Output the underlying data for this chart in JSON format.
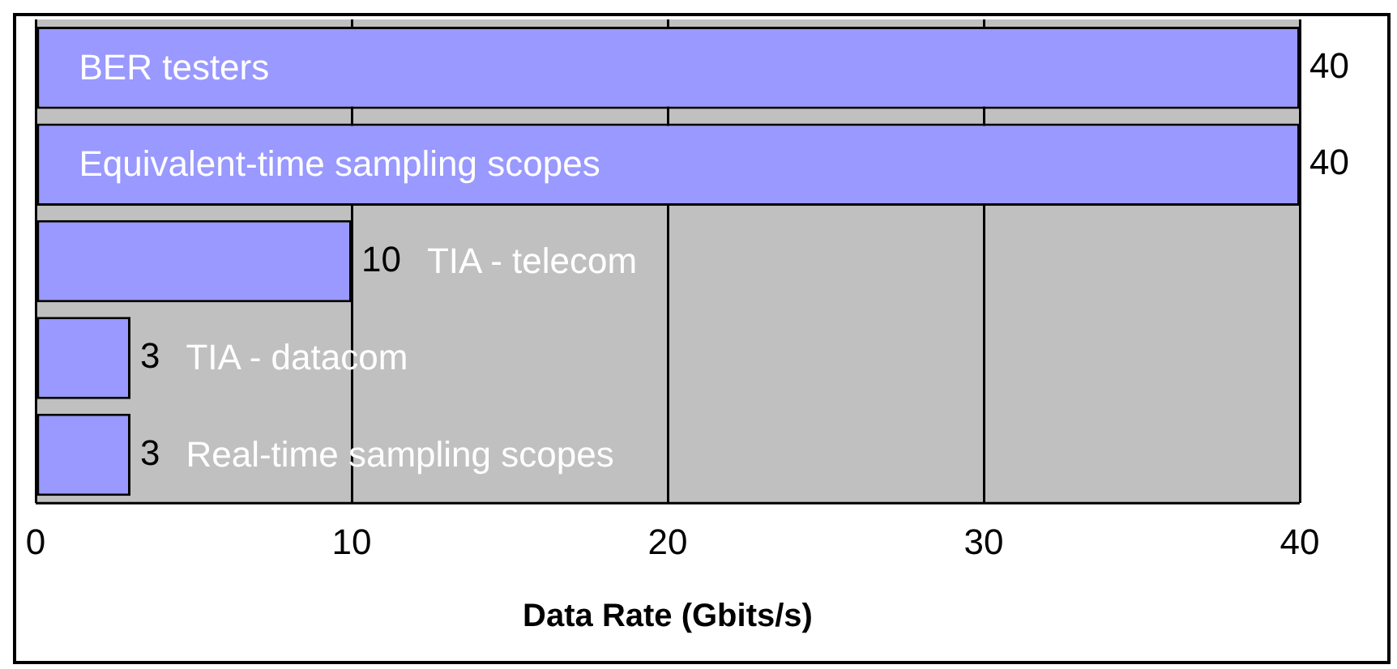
{
  "chart_data": {
    "type": "bar",
    "orientation": "horizontal",
    "xlabel": "Data Rate (Gbits/s)",
    "categories": [
      "BER testers",
      "Equivalent-time sampling scopes",
      "TIA - telecom",
      "TIA - datacom",
      "Real-time sampling scopes"
    ],
    "values": [
      40,
      40,
      10,
      3,
      3
    ],
    "color": "#9999ff",
    "xlim": [
      0,
      40
    ],
    "xticks": [
      0,
      10,
      20,
      30,
      40
    ],
    "grid": "x",
    "data_labels": true,
    "legend": false
  }
}
